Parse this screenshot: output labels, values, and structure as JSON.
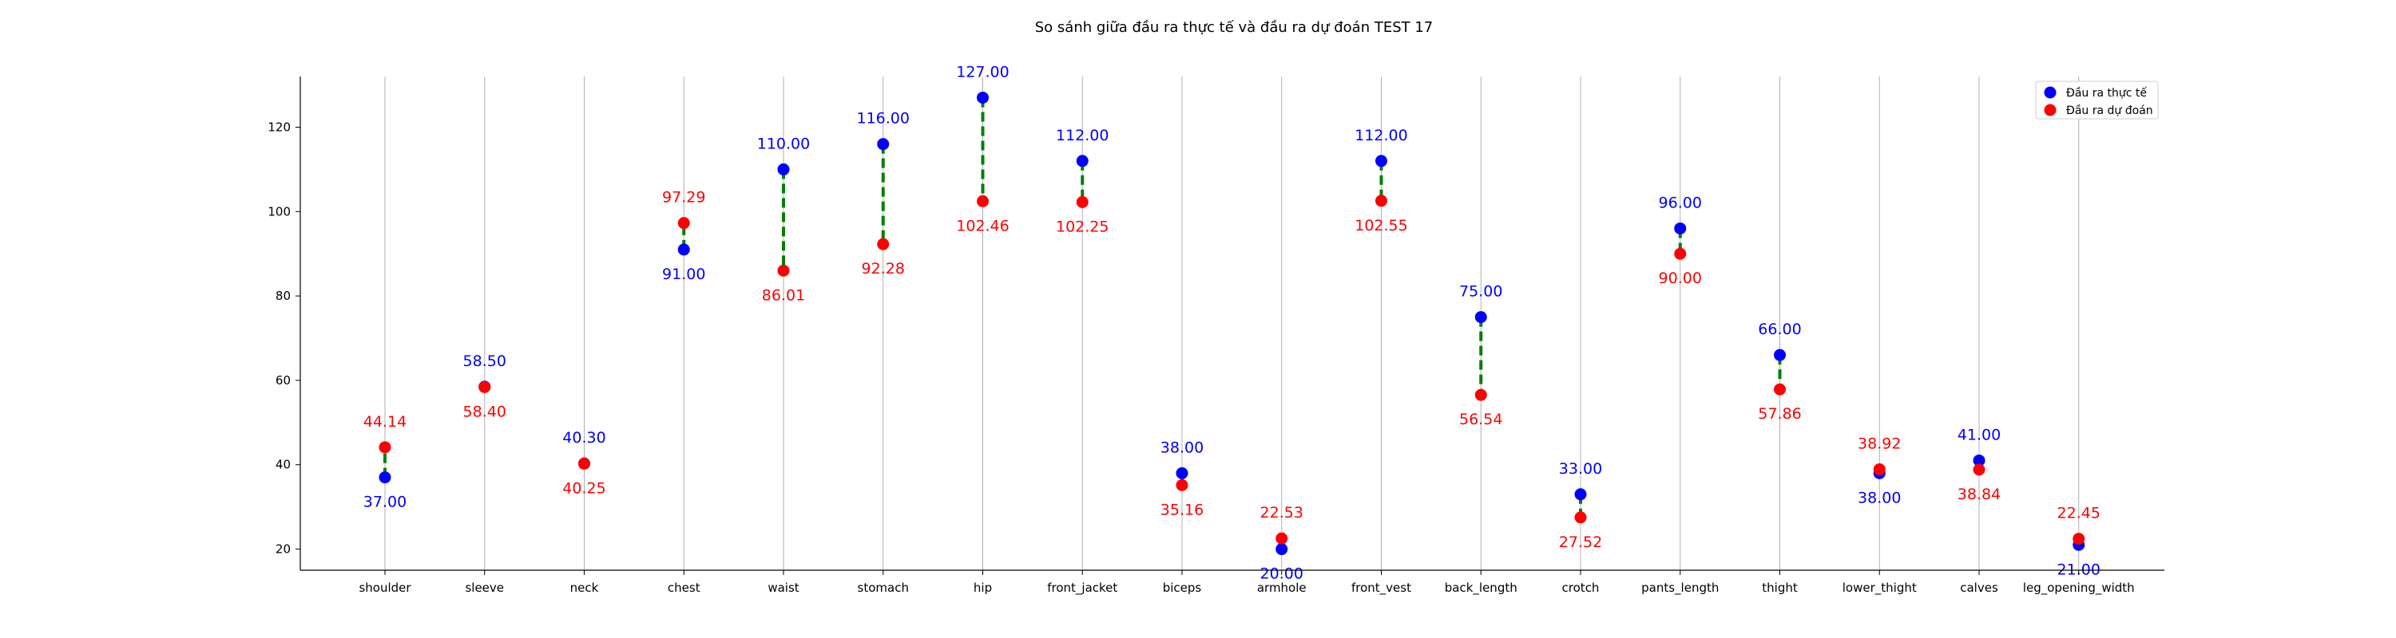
{
  "chart_data": {
    "type": "scatter",
    "title": "So sánh giữa đầu ra thực tế và đầu ra dự đoán TEST 17",
    "xlabel": "",
    "ylabel": "",
    "ylim": [
      15,
      132
    ],
    "yticks": [
      20,
      40,
      60,
      80,
      100,
      120
    ],
    "grid": "vertical",
    "legend_position": "top-right",
    "categories": [
      "shoulder",
      "sleeve",
      "neck",
      "chest",
      "waist",
      "stomach",
      "hip",
      "front_jacket",
      "biceps",
      "armhole",
      "front_vest",
      "back_length",
      "crotch",
      "pants_length",
      "thight",
      "lower_thight",
      "calves",
      "leg_opening_width"
    ],
    "series": [
      {
        "name": "Đầu ra thực tế",
        "color": "#0000ff",
        "values": [
          37.0,
          58.5,
          40.3,
          91.0,
          110.0,
          116.0,
          127.0,
          112.0,
          38.0,
          20.0,
          112.0,
          75.0,
          33.0,
          96.0,
          66.0,
          38.0,
          41.0,
          21.0
        ]
      },
      {
        "name": "Đầu ra dự đoán",
        "color": "#ff0000",
        "values": [
          44.14,
          58.4,
          40.25,
          97.29,
          86.01,
          92.28,
          102.46,
          102.25,
          35.16,
          22.53,
          102.55,
          56.54,
          27.52,
          90.0,
          57.86,
          38.92,
          38.84,
          22.45
        ]
      }
    ],
    "connector_color": "#008000"
  }
}
